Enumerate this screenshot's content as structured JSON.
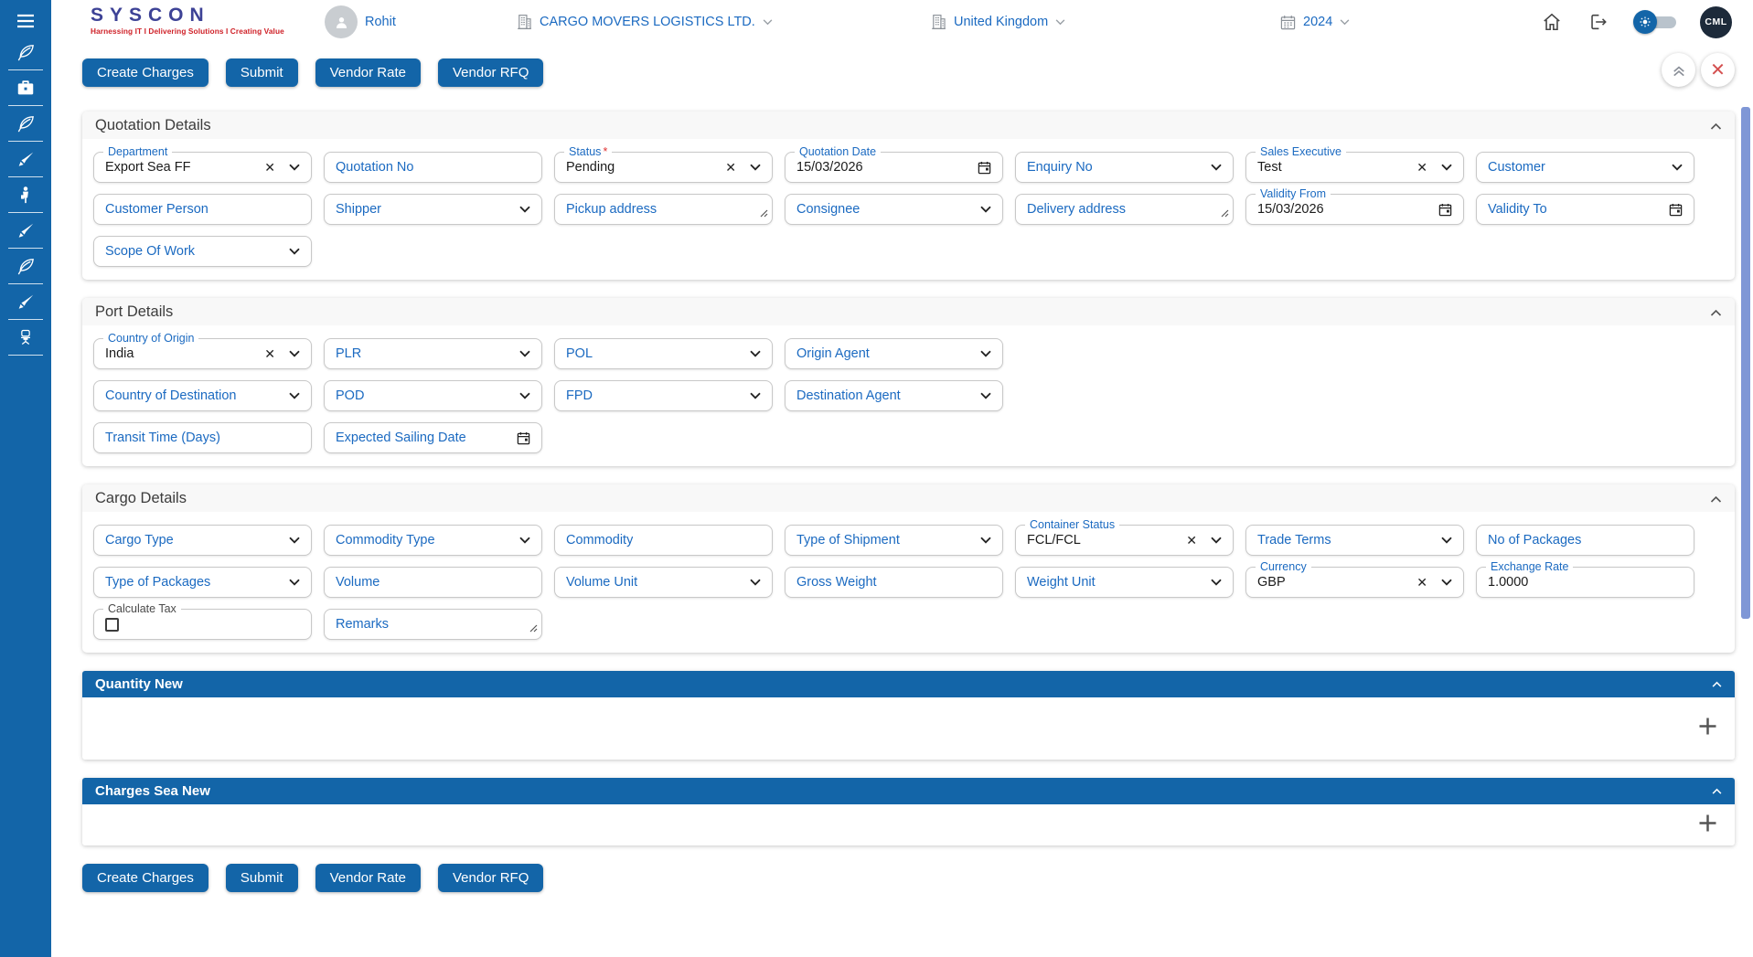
{
  "colors": {
    "brand_blue": "#1365a8",
    "label_blue": "#1b6ac1",
    "logo_navy": "#3d4296",
    "logo_red": "#cf2128",
    "close_red": "#d45050",
    "scrollbar_thumb": "#7f97d6"
  },
  "header": {
    "logo_title": "SYSCON",
    "logo_tagline": "Harnessing IT I Delivering Solutions I Creating Value",
    "user_name": "Rohit",
    "company_name": "CARGO MOVERS LOGISTICS LTD.",
    "country_name": "United Kingdom",
    "year": "2024",
    "profile_initials": "CML"
  },
  "sidebar": {
    "items": [
      {
        "icon": "menu"
      },
      {
        "icon": "leaf"
      },
      {
        "icon": "briefcase"
      },
      {
        "icon": "leaf"
      },
      {
        "icon": "pen"
      },
      {
        "icon": "person"
      },
      {
        "icon": "pen"
      },
      {
        "icon": "leaf"
      },
      {
        "icon": "pen"
      },
      {
        "icon": "chair"
      }
    ]
  },
  "toolbar": {
    "buttons": [
      "Create Charges",
      "Submit",
      "Vendor Rate",
      "Vendor RFQ"
    ]
  },
  "sections": {
    "quotation_details": {
      "title": "Quotation Details",
      "rows": [
        [
          {
            "label": "Department",
            "value": "Export Sea FF",
            "clear": true,
            "chevron": true
          },
          {
            "label": "Quotation No"
          },
          {
            "label": "Status",
            "required": true,
            "value": "Pending",
            "clear": true,
            "chevron": true
          },
          {
            "label": "Quotation Date",
            "value": "15/03/2026",
            "calendar": true
          },
          {
            "label": "Enquiry No",
            "chevron": true
          },
          {
            "label": "Sales Executive",
            "value": "Test",
            "clear": true,
            "chevron": true
          },
          {
            "label": "Customer",
            "chevron": true
          }
        ],
        [
          {
            "label": "Customer Person"
          },
          {
            "label": "Shipper",
            "chevron": true
          },
          {
            "label": "Pickup address",
            "multiline": true
          },
          {
            "label": "Consignee",
            "chevron": true
          },
          {
            "label": "Delivery address",
            "multiline": true
          },
          {
            "label": "Validity From",
            "value": "15/03/2026",
            "calendar": true
          },
          {
            "label": "Validity To",
            "calendar": true
          }
        ],
        [
          {
            "label": "Scope Of Work",
            "chevron": true
          }
        ]
      ]
    },
    "port_details": {
      "title": "Port Details",
      "rows": [
        [
          {
            "label": "Country of Origin",
            "value": "India",
            "clear": true,
            "chevron": true
          },
          {
            "label": "PLR",
            "chevron": true
          },
          {
            "label": "POL",
            "chevron": true
          },
          {
            "label": "Origin Agent",
            "chevron": true
          }
        ],
        [
          {
            "label": "Country of Destination",
            "chevron": true
          },
          {
            "label": "POD",
            "chevron": true
          },
          {
            "label": "FPD",
            "chevron": true
          },
          {
            "label": "Destination Agent",
            "chevron": true
          }
        ],
        [
          {
            "label": "Transit Time (Days)"
          },
          {
            "label": "Expected Sailing Date",
            "calendar": true
          }
        ]
      ]
    },
    "cargo_details": {
      "title": "Cargo Details",
      "rows": [
        [
          {
            "label": "Cargo Type",
            "chevron": true
          },
          {
            "label": "Commodity Type",
            "chevron": true
          },
          {
            "label": "Commodity"
          },
          {
            "label": "Type of Shipment",
            "chevron": true
          },
          {
            "label": "Container Status",
            "value": "FCL/FCL",
            "clear": true,
            "chevron": true
          },
          {
            "label": "Trade Terms",
            "chevron": true
          },
          {
            "label": "No of Packages"
          }
        ],
        [
          {
            "label": "Type of Packages",
            "chevron": true
          },
          {
            "label": "Volume"
          },
          {
            "label": "Volume Unit",
            "chevron": true
          },
          {
            "label": "Gross Weight"
          },
          {
            "label": "Weight Unit",
            "chevron": true
          },
          {
            "label": "Currency",
            "value": "GBP",
            "clear": true,
            "chevron": true
          },
          {
            "label": "Exchange Rate",
            "value": "1.0000"
          }
        ],
        [
          {
            "label": "Calculate Tax",
            "float": true,
            "muted": true,
            "checkbox": true
          },
          {
            "label": "Remarks",
            "multiline": true
          }
        ]
      ]
    },
    "quantity_new": {
      "title": "Quantity New"
    },
    "charges_sea_new": {
      "title": "Charges Sea New"
    }
  }
}
